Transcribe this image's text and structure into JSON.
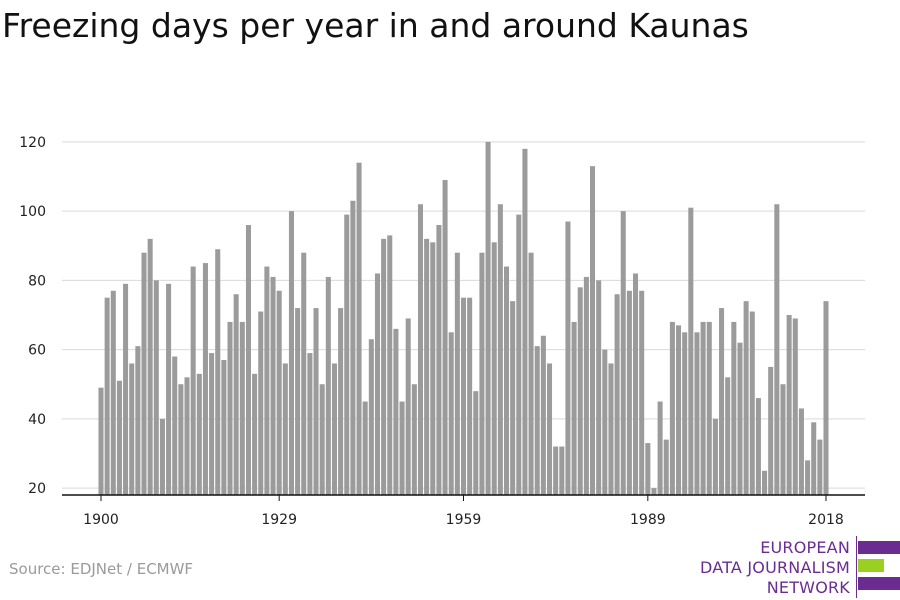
{
  "title": "Freezing days per year in and around Kaunas",
  "source": "Source: EDJNet / ECMWF",
  "logo": {
    "lines": [
      "EUROPEAN",
      "DATA JOURNALISM",
      "NETWORK"
    ],
    "colors": {
      "purple": "#6b2c91",
      "green": "#9bd021"
    }
  },
  "colors": {
    "bar": "#9b9b9b",
    "grid": "#d9d9d9",
    "axis": "#111111"
  },
  "chart_data": {
    "type": "bar",
    "title": "Freezing days per year in and around Kaunas",
    "xlabel": "",
    "ylabel": "",
    "ylim": [
      18,
      122
    ],
    "grid": true,
    "yticks": [
      20,
      40,
      60,
      80,
      100,
      120
    ],
    "xticks": [
      "1900",
      "1929",
      "1959",
      "1989",
      "2018"
    ],
    "x": [
      1900,
      1901,
      1902,
      1903,
      1904,
      1905,
      1906,
      1907,
      1908,
      1909,
      1910,
      1911,
      1912,
      1913,
      1914,
      1915,
      1916,
      1917,
      1918,
      1919,
      1920,
      1921,
      1922,
      1923,
      1924,
      1925,
      1926,
      1927,
      1928,
      1929,
      1930,
      1931,
      1932,
      1933,
      1934,
      1935,
      1936,
      1937,
      1938,
      1939,
      1940,
      1941,
      1942,
      1943,
      1944,
      1945,
      1946,
      1947,
      1948,
      1949,
      1950,
      1951,
      1952,
      1953,
      1954,
      1955,
      1956,
      1957,
      1958,
      1959,
      1960,
      1961,
      1962,
      1963,
      1964,
      1965,
      1966,
      1967,
      1968,
      1969,
      1970,
      1971,
      1972,
      1973,
      1974,
      1975,
      1976,
      1977,
      1978,
      1979,
      1980,
      1981,
      1982,
      1983,
      1984,
      1985,
      1986,
      1987,
      1988,
      1989,
      1990,
      1991,
      1992,
      1993,
      1994,
      1995,
      1996,
      1997,
      1998,
      1999,
      2000,
      2001,
      2002,
      2003,
      2004,
      2005,
      2006,
      2007,
      2008,
      2009,
      2010,
      2011,
      2012,
      2013,
      2014,
      2015,
      2016,
      2017,
      2018
    ],
    "values": [
      49,
      75,
      77,
      51,
      79,
      56,
      61,
      88,
      92,
      80,
      40,
      79,
      58,
      50,
      52,
      84,
      53,
      85,
      59,
      89,
      57,
      68,
      76,
      68,
      96,
      53,
      71,
      84,
      81,
      77,
      56,
      100,
      72,
      88,
      59,
      72,
      50,
      81,
      56,
      72,
      99,
      103,
      114,
      45,
      63,
      82,
      92,
      93,
      66,
      45,
      69,
      50,
      102,
      92,
      91,
      96,
      109,
      65,
      88,
      75,
      75,
      48,
      88,
      120,
      91,
      102,
      84,
      74,
      99,
      118,
      88,
      61,
      64,
      56,
      32,
      32,
      97,
      68,
      78,
      81,
      113,
      80,
      60,
      56,
      76,
      100,
      77,
      82,
      77,
      33,
      20,
      45,
      34,
      68,
      67,
      65,
      101,
      65,
      68,
      68,
      40,
      72,
      52,
      68,
      62,
      74,
      71,
      46,
      25,
      55,
      102,
      50,
      70,
      69,
      43,
      28,
      39,
      34,
      74
    ]
  }
}
